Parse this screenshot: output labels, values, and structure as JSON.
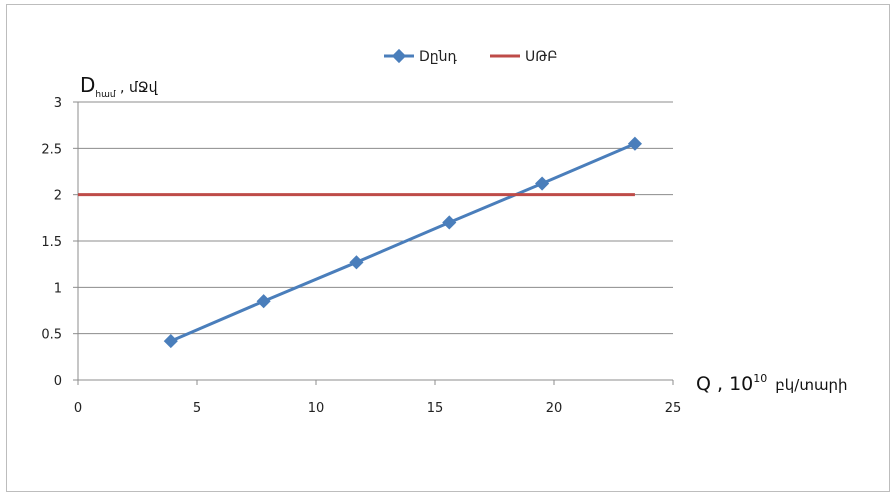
{
  "chart_data": {
    "type": "line",
    "ylabel": {
      "main": "D",
      "sub": "համ",
      "sep": " ,",
      "unit": " մՋվ"
    },
    "xlabel": {
      "main": "Q , 10",
      "sup": "10",
      "unit": "բկ/տարի"
    },
    "xlim": [
      0,
      25
    ],
    "ylim": [
      0,
      3
    ],
    "x_ticks": [
      "0",
      "5",
      "10",
      "15",
      "20",
      "25"
    ],
    "y_ticks": [
      "0",
      "0.5",
      "1",
      "1.5",
      "2",
      "2.5",
      "3"
    ],
    "grid": true,
    "legend_position": "top",
    "series": [
      {
        "name": "Dընդ",
        "color": "#4a7ebb",
        "marker": "diamond",
        "points": [
          {
            "x": 3.9,
            "y": 0.42
          },
          {
            "x": 7.8,
            "y": 0.85
          },
          {
            "x": 11.7,
            "y": 1.27
          },
          {
            "x": 15.6,
            "y": 1.7
          },
          {
            "x": 19.5,
            "y": 2.12
          },
          {
            "x": 23.4,
            "y": 2.55
          }
        ]
      },
      {
        "name": "ՍԹԲ",
        "color": "#be4b48",
        "marker": "none",
        "points": [
          {
            "x": 0,
            "y": 2.0
          },
          {
            "x": 23.4,
            "y": 2.0
          }
        ]
      }
    ]
  }
}
